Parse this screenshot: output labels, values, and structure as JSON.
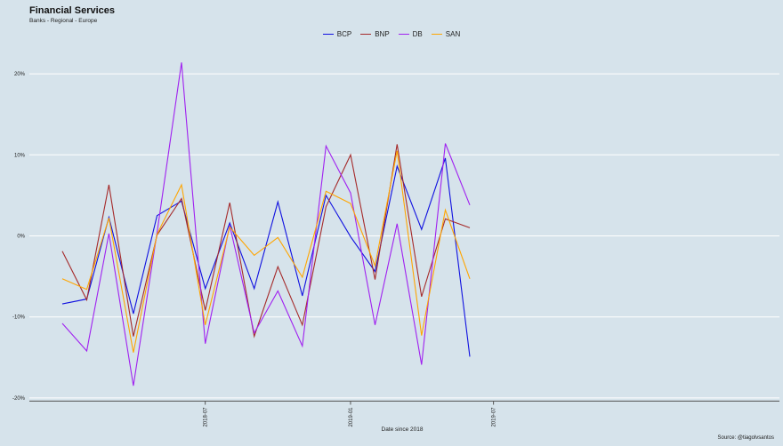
{
  "title": "Financial Services",
  "subtitle": "Banks - Regional - Europe",
  "caption": "Source: @tiagolvsantos",
  "chart_data": {
    "type": "line",
    "title": "Financial Services",
    "subtitle": "Banks - Regional - Europe",
    "xlabel": "Date since 2018",
    "ylabel": "",
    "ylim": [
      -20,
      20
    ],
    "yticks": [
      "-20%",
      "-10%",
      "0%",
      "10%",
      "20%"
    ],
    "ytick_values": [
      -20,
      -10,
      0,
      10,
      20
    ],
    "xticks": [
      "2018-07",
      "2019-01",
      "2019-07"
    ],
    "xtick_values": [
      "2018-07-01",
      "2019-01-01",
      "2019-07-01"
    ],
    "x": [
      "2018-01-01",
      "2018-02-01",
      "2018-03-01",
      "2018-04-01",
      "2018-05-01",
      "2018-06-01",
      "2018-07-01",
      "2018-08-01",
      "2018-09-01",
      "2018-10-01",
      "2018-11-01",
      "2018-12-01",
      "2019-01-01",
      "2019-02-01",
      "2019-03-01",
      "2019-04-01",
      "2019-05-01",
      "2019-06-01",
      "2019-07-01",
      "2019-08-01"
    ],
    "grid": true,
    "legend_position": "top",
    "series": [
      {
        "name": "BCP",
        "color": "#1010e0",
        "values": [
          -8.4,
          -7.8,
          2.3,
          -9.6,
          2.5,
          4.3,
          -6.5,
          1.6,
          -6.5,
          4.2,
          -7.4,
          5.0,
          -0.1,
          -4.4,
          8.6,
          0.8,
          9.6,
          -14.9,
          null,
          null
        ]
      },
      {
        "name": "BNP",
        "color": "#a52a2a",
        "values": [
          -1.9,
          -7.9,
          6.3,
          -12.4,
          0.1,
          4.6,
          -9.2,
          4.1,
          -12.4,
          -3.8,
          -11.0,
          3.6,
          10.0,
          -5.4,
          11.3,
          -7.5,
          2.1,
          1.0,
          null,
          null
        ]
      },
      {
        "name": "DB",
        "color": "#a020f0",
        "values": [
          -10.8,
          -14.2,
          0.3,
          -18.5,
          0.4,
          21.4,
          -13.3,
          1.3,
          -12.0,
          -6.8,
          -13.6,
          11.1,
          5.3,
          -11.0,
          1.5,
          -15.9,
          11.4,
          3.8,
          null,
          null
        ]
      },
      {
        "name": "SAN",
        "color": "#ffa500",
        "values": [
          -5.3,
          -6.6,
          2.2,
          -14.4,
          0.2,
          6.3,
          -11.0,
          1.1,
          -2.4,
          -0.2,
          -5.1,
          5.5,
          4.0,
          -3.7,
          10.5,
          -12.3,
          3.2,
          -5.3,
          null,
          null
        ]
      }
    ]
  }
}
